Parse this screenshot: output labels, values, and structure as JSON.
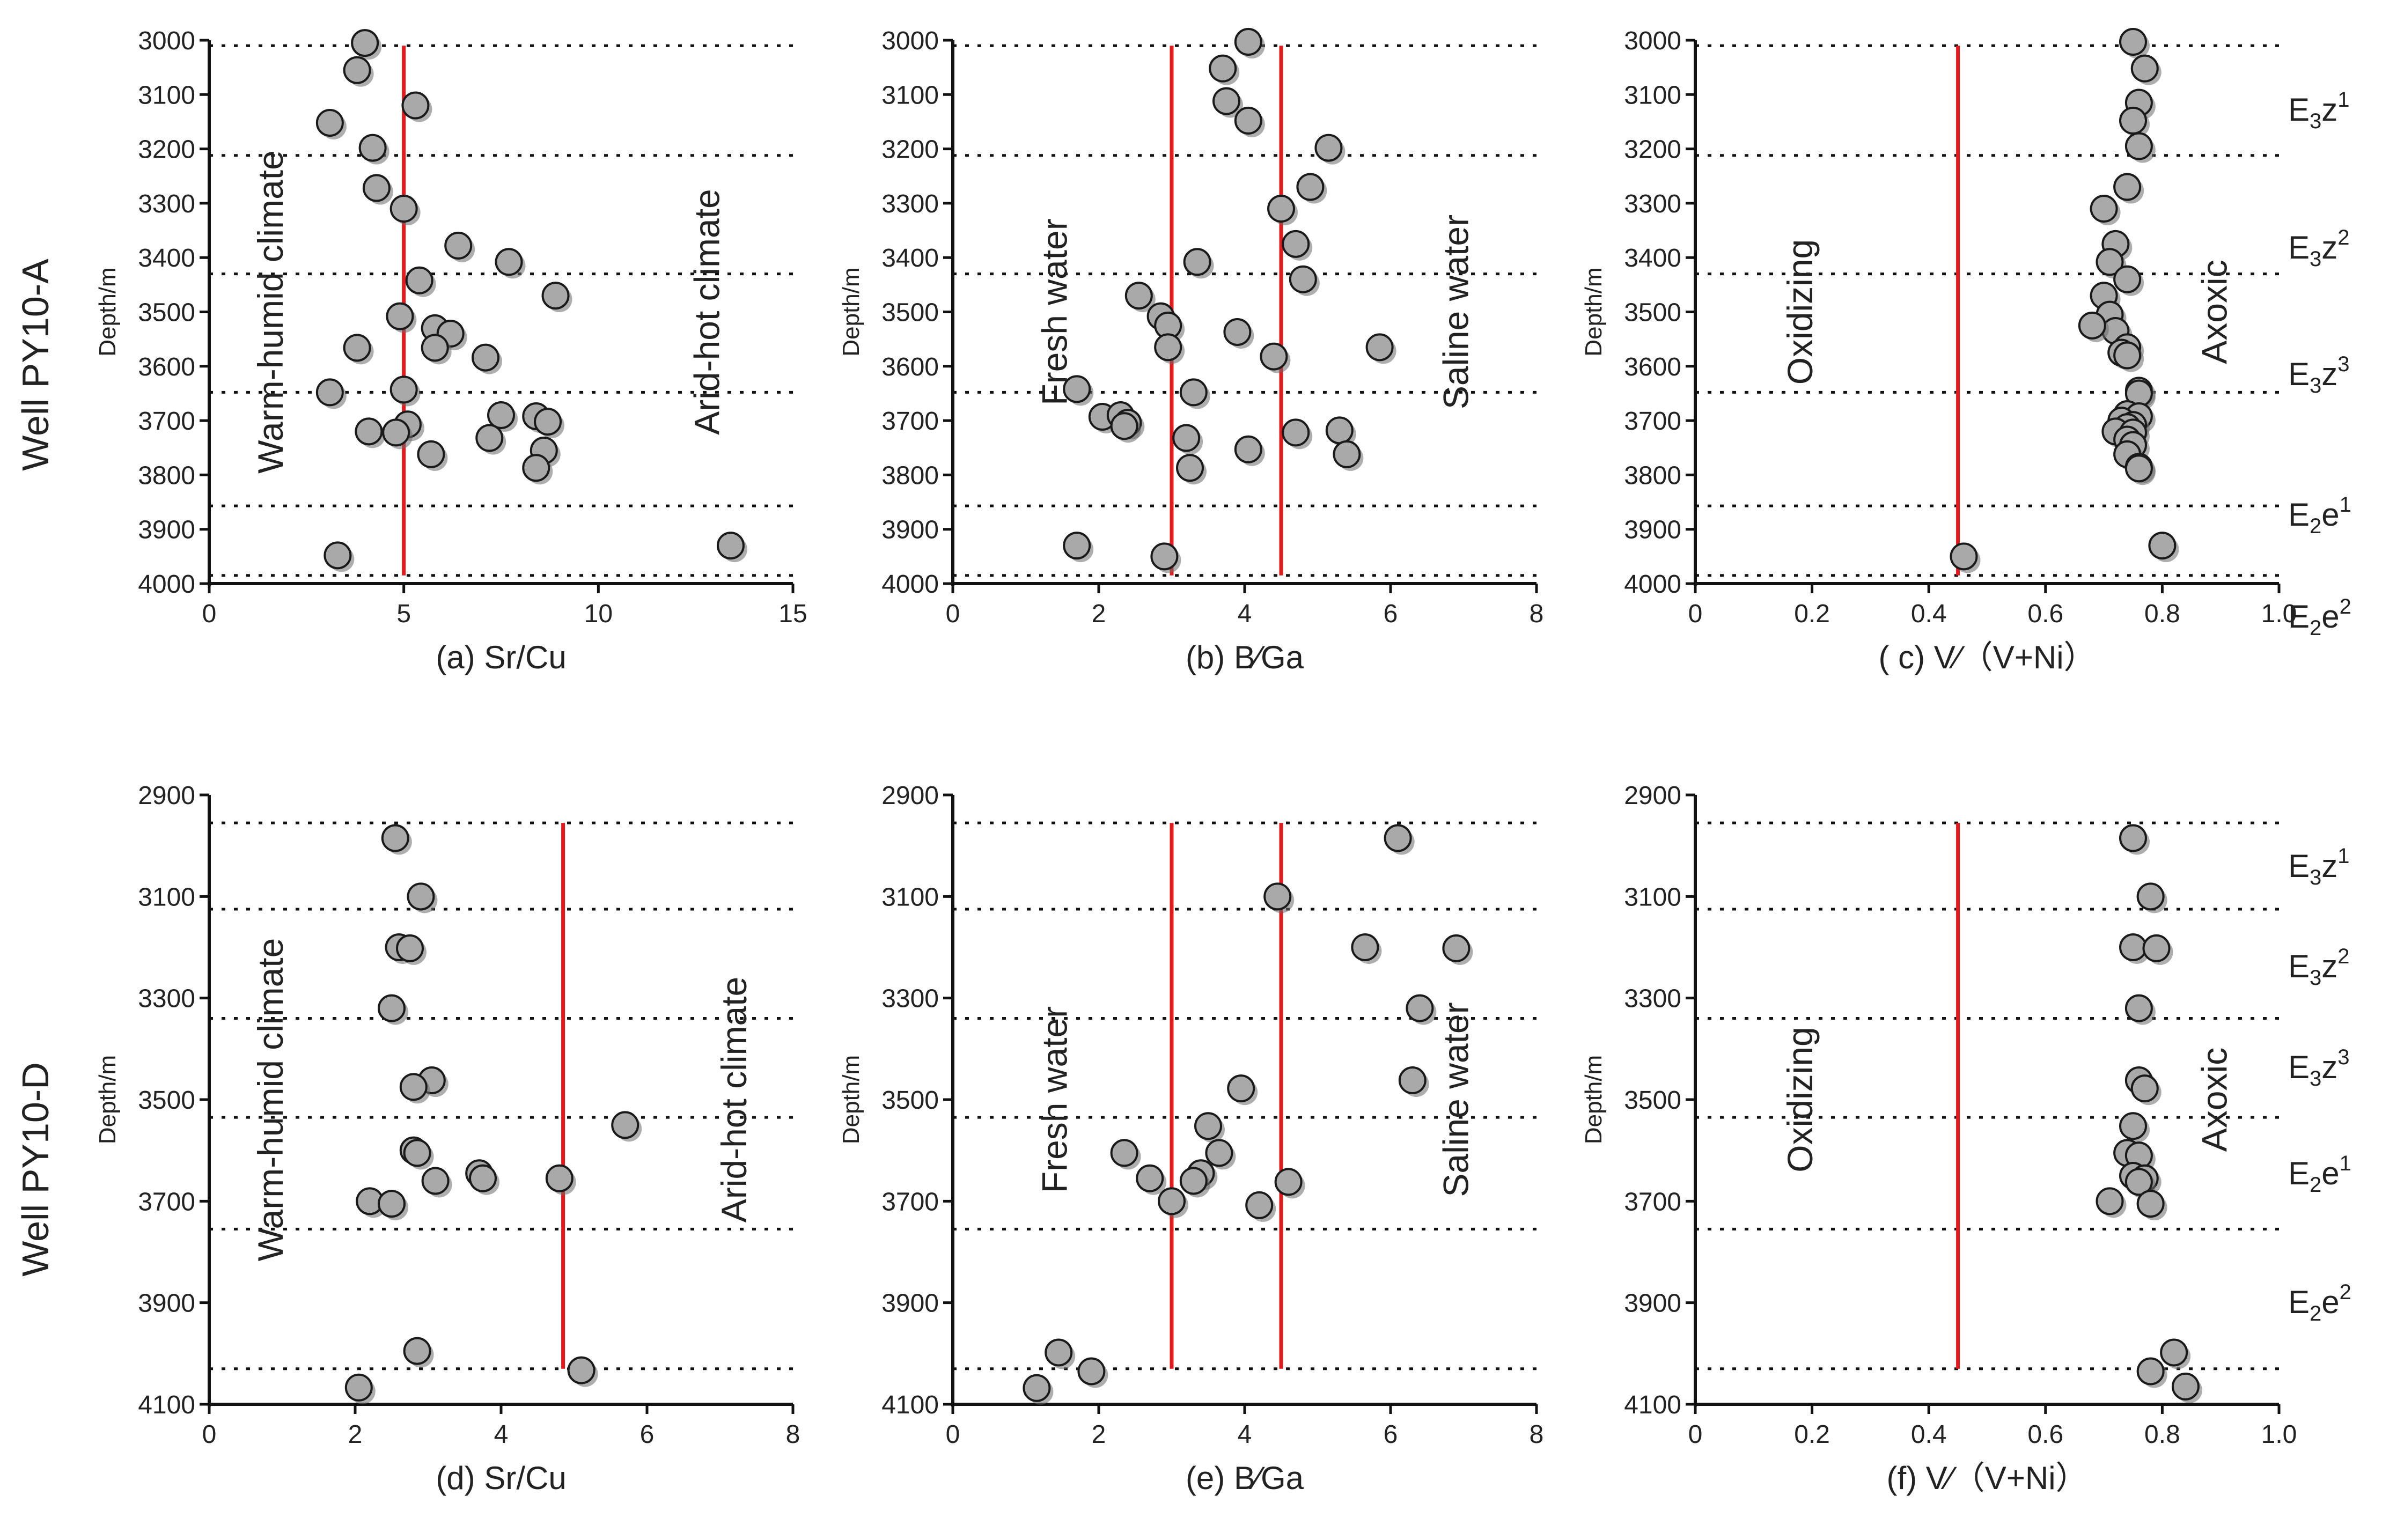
{
  "wells": [
    "Well PY10-A",
    "Well PY10-D"
  ],
  "strata_rows": [
    [
      "E3z1",
      "E3z2",
      "E3z3",
      "E2e1",
      "E2e2"
    ],
    [
      "E3z1",
      "E3z2",
      "E3z3",
      "E2e1",
      "E2e2"
    ]
  ],
  "strata_labels": [
    [
      {
        "base": "E",
        "sub": "3",
        "main": "z",
        "sup": "1"
      },
      {
        "base": "E",
        "sub": "3",
        "main": "z",
        "sup": "2"
      },
      {
        "base": "E",
        "sub": "3",
        "main": "z",
        "sup": "3"
      },
      {
        "base": "E",
        "sub": "2",
        "main": "e",
        "sup": "1"
      },
      {
        "base": "E",
        "sub": "2",
        "main": "e",
        "sup": "2"
      }
    ],
    [
      {
        "base": "E",
        "sub": "3",
        "main": "z",
        "sup": "1"
      },
      {
        "base": "E",
        "sub": "3",
        "main": "z",
        "sup": "2"
      },
      {
        "base": "E",
        "sub": "3",
        "main": "z",
        "sup": "3"
      },
      {
        "base": "E",
        "sub": "2",
        "main": "e",
        "sup": "1"
      },
      {
        "base": "E",
        "sub": "2",
        "main": "e",
        "sup": "2"
      }
    ]
  ],
  "chart_data": [
    {
      "id": "a",
      "type": "scatter",
      "xlabel": "(a)  Sr/Cu",
      "ylabel": "Depth/m",
      "xlim": [
        0,
        15
      ],
      "xticks": [
        0,
        5,
        10,
        15
      ],
      "ylim": [
        3000,
        4000
      ],
      "yticks": [
        3000,
        3100,
        3200,
        3300,
        3400,
        3500,
        3600,
        3700,
        3800,
        3900,
        4000
      ],
      "boundaries": [
        3010,
        3212,
        3430,
        3648,
        3857,
        3985
      ],
      "thresholds": [
        5
      ],
      "region_labels": [
        "Warm-humid climate",
        "Arid-hot climate"
      ],
      "points": [
        [
          4.0,
          3005
        ],
        [
          3.8,
          3055
        ],
        [
          5.3,
          3120
        ],
        [
          3.1,
          3152
        ],
        [
          4.2,
          3198
        ],
        [
          4.3,
          3272
        ],
        [
          5.0,
          3310
        ],
        [
          6.4,
          3378
        ],
        [
          7.7,
          3408
        ],
        [
          5.4,
          3442
        ],
        [
          8.9,
          3470
        ],
        [
          4.9,
          3508
        ],
        [
          5.8,
          3530
        ],
        [
          6.2,
          3540
        ],
        [
          5.8,
          3566
        ],
        [
          3.8,
          3566
        ],
        [
          7.1,
          3584
        ],
        [
          5.0,
          3643
        ],
        [
          3.1,
          3648
        ],
        [
          7.5,
          3690
        ],
        [
          8.4,
          3692
        ],
        [
          8.7,
          3702
        ],
        [
          5.1,
          3707
        ],
        [
          4.1,
          3720
        ],
        [
          4.8,
          3722
        ],
        [
          7.2,
          3732
        ],
        [
          8.6,
          3755
        ],
        [
          5.7,
          3762
        ],
        [
          8.4,
          3787
        ],
        [
          3.3,
          3948
        ],
        [
          13.4,
          3930
        ]
      ]
    },
    {
      "id": "b",
      "type": "scatter",
      "xlabel": "(b)  B∕Ga",
      "ylabel": "Depth/m",
      "xlim": [
        0,
        8
      ],
      "xticks": [
        0,
        2,
        4,
        6,
        8
      ],
      "ylim": [
        3000,
        4000
      ],
      "yticks": [
        3000,
        3100,
        3200,
        3300,
        3400,
        3500,
        3600,
        3700,
        3800,
        3900,
        4000
      ],
      "boundaries": [
        3010,
        3212,
        3430,
        3648,
        3857,
        3985
      ],
      "thresholds": [
        3,
        4.5
      ],
      "region_labels": [
        "Fresh water",
        "Saline water"
      ],
      "points": [
        [
          4.05,
          3003
        ],
        [
          3.7,
          3052
        ],
        [
          3.75,
          3112
        ],
        [
          4.05,
          3148
        ],
        [
          5.15,
          3198
        ],
        [
          4.9,
          3270
        ],
        [
          4.5,
          3310
        ],
        [
          4.7,
          3375
        ],
        [
          3.35,
          3408
        ],
        [
          4.8,
          3440
        ],
        [
          2.55,
          3470
        ],
        [
          2.85,
          3508
        ],
        [
          2.95,
          3525
        ],
        [
          3.9,
          3537
        ],
        [
          2.95,
          3565
        ],
        [
          5.85,
          3565
        ],
        [
          4.4,
          3582
        ],
        [
          3.3,
          3648
        ],
        [
          1.7,
          3642
        ],
        [
          2.05,
          3693
        ],
        [
          2.3,
          3690
        ],
        [
          2.4,
          3704
        ],
        [
          2.35,
          3710
        ],
        [
          5.3,
          3718
        ],
        [
          4.7,
          3722
        ],
        [
          3.2,
          3732
        ],
        [
          4.05,
          3753
        ],
        [
          5.4,
          3762
        ],
        [
          3.25,
          3787
        ],
        [
          1.7,
          3930
        ],
        [
          2.9,
          3950
        ]
      ]
    },
    {
      "id": "c",
      "type": "scatter",
      "xlabel": "( c)  V∕（V+Ni）",
      "ylabel": "Depth/m",
      "xlim": [
        0,
        1
      ],
      "xticks": [
        0,
        0.2,
        0.4,
        0.6,
        0.8,
        1.0
      ],
      "xticklabels": [
        "0",
        "0.2",
        "0.4",
        "0.6",
        "0.8",
        "1.0"
      ],
      "ylim": [
        3000,
        4000
      ],
      "yticks": [
        3000,
        3100,
        3200,
        3300,
        3400,
        3500,
        3600,
        3700,
        3800,
        3900,
        4000
      ],
      "boundaries": [
        3010,
        3212,
        3430,
        3648,
        3857,
        3985
      ],
      "thresholds": [
        0.45
      ],
      "region_labels": [
        "Oxidizing",
        "Axoxic"
      ],
      "points": [
        [
          0.75,
          3003
        ],
        [
          0.77,
          3052
        ],
        [
          0.76,
          3115
        ],
        [
          0.75,
          3148
        ],
        [
          0.76,
          3195
        ],
        [
          0.74,
          3270
        ],
        [
          0.7,
          3310
        ],
        [
          0.72,
          3375
        ],
        [
          0.71,
          3408
        ],
        [
          0.74,
          3440
        ],
        [
          0.7,
          3470
        ],
        [
          0.71,
          3505
        ],
        [
          0.72,
          3535
        ],
        [
          0.68,
          3525
        ],
        [
          0.74,
          3565
        ],
        [
          0.73,
          3575
        ],
        [
          0.74,
          3580
        ],
        [
          0.76,
          3645
        ],
        [
          0.76,
          3650
        ],
        [
          0.74,
          3688
        ],
        [
          0.76,
          3692
        ],
        [
          0.73,
          3700
        ],
        [
          0.75,
          3708
        ],
        [
          0.74,
          3712
        ],
        [
          0.72,
          3720
        ],
        [
          0.75,
          3722
        ],
        [
          0.74,
          3735
        ],
        [
          0.75,
          3745
        ],
        [
          0.74,
          3762
        ],
        [
          0.76,
          3785
        ],
        [
          0.76,
          3788
        ],
        [
          0.8,
          3930
        ],
        [
          0.46,
          3950
        ]
      ]
    },
    {
      "id": "d",
      "type": "scatter",
      "xlabel": "(d)  Sr/Cu",
      "ylabel": "Depth/m",
      "xlim": [
        0,
        8
      ],
      "xticks": [
        0,
        2,
        4,
        6,
        8
      ],
      "ylim": [
        2900,
        4100
      ],
      "yticks": [
        2900,
        3100,
        3300,
        3500,
        3700,
        3900,
        4100
      ],
      "boundaries": [
        2955,
        3125,
        3340,
        3535,
        3755,
        4030
      ],
      "thresholds": [
        4.85
      ],
      "region_labels": [
        "Warm-humid climate",
        "Arid-hot climate"
      ],
      "points": [
        [
          2.55,
          2985
        ],
        [
          2.9,
          3100
        ],
        [
          2.6,
          3200
        ],
        [
          2.75,
          3202
        ],
        [
          2.5,
          3320
        ],
        [
          3.05,
          3462
        ],
        [
          2.8,
          3475
        ],
        [
          5.7,
          3550
        ],
        [
          2.8,
          3600
        ],
        [
          2.85,
          3605
        ],
        [
          3.7,
          3645
        ],
        [
          3.75,
          3655
        ],
        [
          3.1,
          3660
        ],
        [
          4.8,
          3655
        ],
        [
          2.2,
          3700
        ],
        [
          2.5,
          3705
        ],
        [
          2.85,
          3995
        ],
        [
          5.1,
          4033
        ],
        [
          2.05,
          4067
        ]
      ]
    },
    {
      "id": "e",
      "type": "scatter",
      "xlabel": "(e)  B∕Ga",
      "ylabel": "Depth/m",
      "xlim": [
        0,
        8
      ],
      "xticks": [
        0,
        2,
        4,
        6,
        8
      ],
      "ylim": [
        2900,
        4100
      ],
      "yticks": [
        2900,
        3100,
        3300,
        3500,
        3700,
        3900,
        4100
      ],
      "boundaries": [
        2955,
        3125,
        3340,
        3535,
        3755,
        4030
      ],
      "thresholds": [
        3,
        4.5
      ],
      "region_labels": [
        "Fresh water",
        "Saline water"
      ],
      "points": [
        [
          6.1,
          2985
        ],
        [
          4.45,
          3100
        ],
        [
          5.65,
          3200
        ],
        [
          6.9,
          3202
        ],
        [
          6.4,
          3320
        ],
        [
          6.3,
          3462
        ],
        [
          3.95,
          3478
        ],
        [
          3.5,
          3552
        ],
        [
          2.35,
          3605
        ],
        [
          3.65,
          3605
        ],
        [
          2.7,
          3655
        ],
        [
          3.4,
          3645
        ],
        [
          3.3,
          3660
        ],
        [
          4.6,
          3662
        ],
        [
          3.0,
          3700
        ],
        [
          4.2,
          3708
        ],
        [
          1.45,
          3998
        ],
        [
          1.9,
          4035
        ],
        [
          1.15,
          4068
        ]
      ]
    },
    {
      "id": "f",
      "type": "scatter",
      "xlabel": "(f)   V∕（V+Ni）",
      "ylabel": "Depth/m",
      "xlim": [
        0,
        1
      ],
      "xticks": [
        0,
        0.2,
        0.4,
        0.6,
        0.8,
        1.0
      ],
      "xticklabels": [
        "0",
        "0.2",
        "0.4",
        "0.6",
        "0.8",
        "1.0"
      ],
      "ylim": [
        2900,
        4100
      ],
      "yticks": [
        2900,
        3100,
        3300,
        3500,
        3700,
        3900,
        4100
      ],
      "boundaries": [
        2955,
        3125,
        3340,
        3535,
        3755,
        4030
      ],
      "thresholds": [
        0.45
      ],
      "region_labels": [
        "Oxidizing",
        "Axoxic"
      ],
      "points": [
        [
          0.75,
          2985
        ],
        [
          0.78,
          3100
        ],
        [
          0.75,
          3200
        ],
        [
          0.79,
          3202
        ],
        [
          0.76,
          3320
        ],
        [
          0.76,
          3462
        ],
        [
          0.77,
          3478
        ],
        [
          0.75,
          3552
        ],
        [
          0.74,
          3605
        ],
        [
          0.76,
          3610
        ],
        [
          0.75,
          3650
        ],
        [
          0.77,
          3655
        ],
        [
          0.76,
          3662
        ],
        [
          0.71,
          3700
        ],
        [
          0.78,
          3705
        ],
        [
          0.82,
          3998
        ],
        [
          0.78,
          4035
        ],
        [
          0.84,
          4065
        ]
      ]
    }
  ]
}
